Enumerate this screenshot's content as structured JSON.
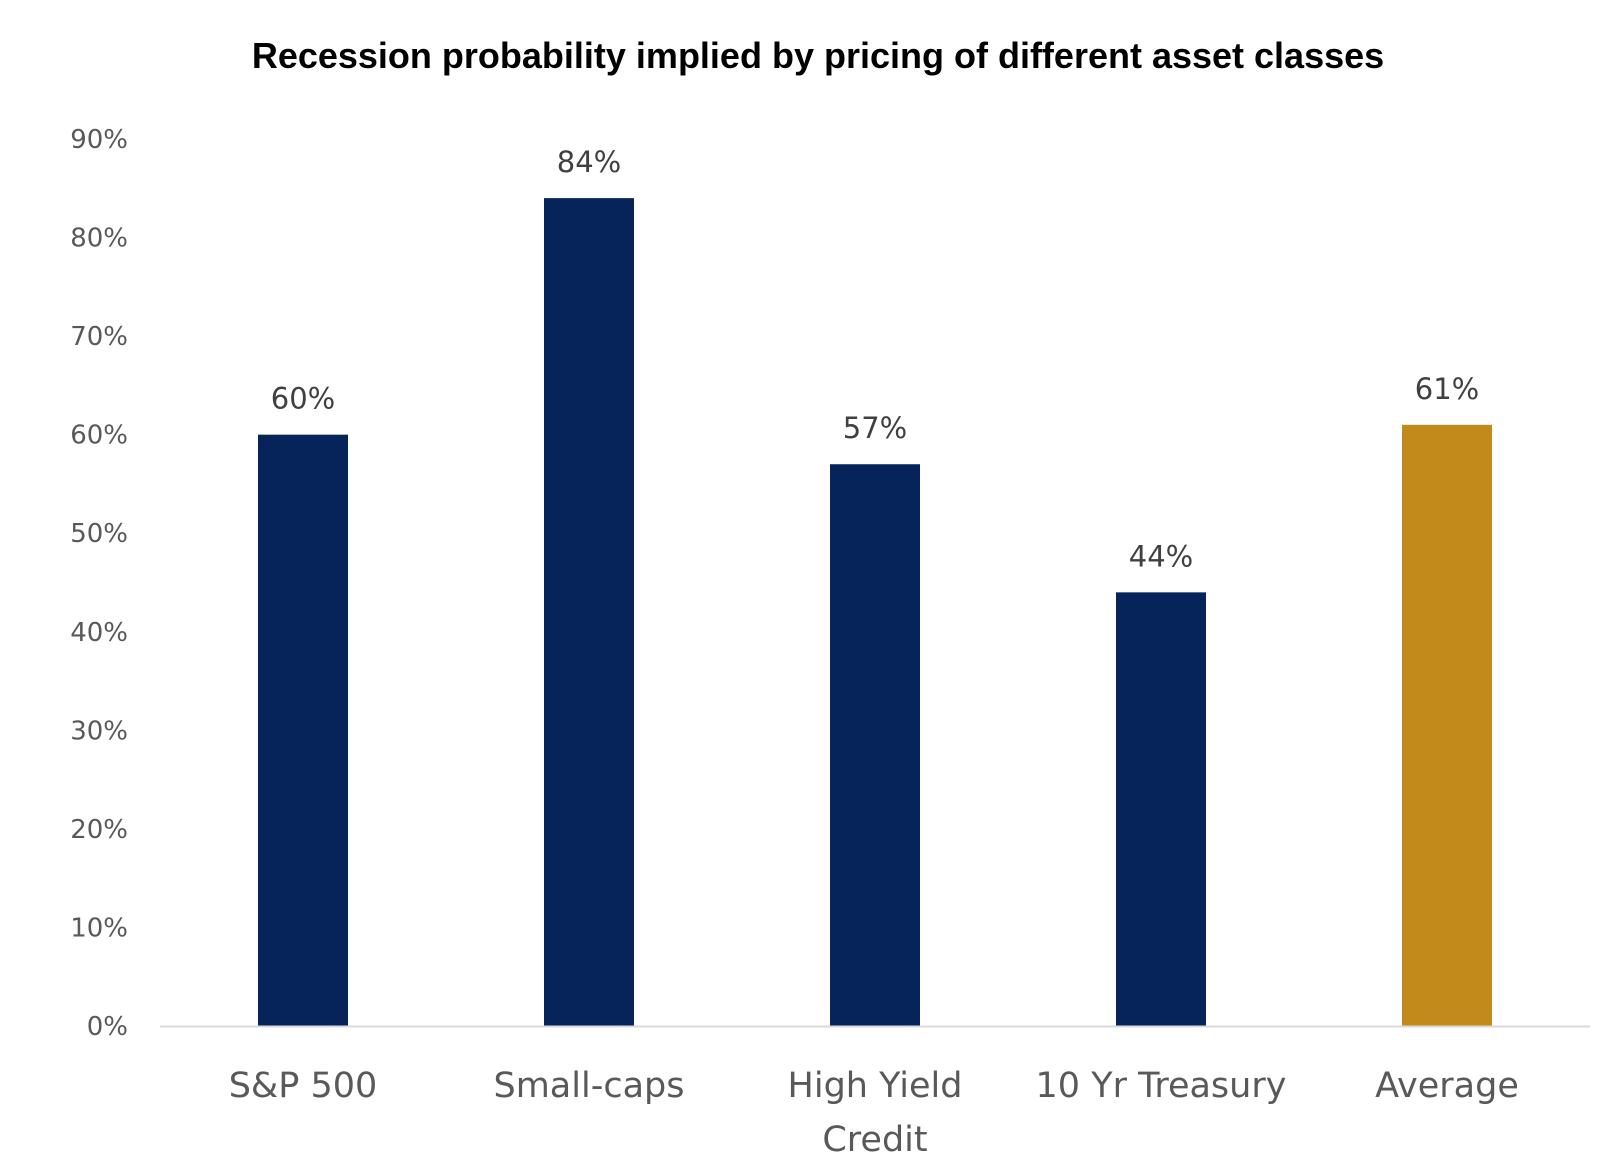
{
  "chart_data": {
    "type": "bar",
    "title": "Recession probability implied by pricing of different asset classes",
    "xlabel": "",
    "ylabel": "",
    "categories": [
      [
        "S&P  500"
      ],
      [
        "Small-caps"
      ],
      [
        "High Yield",
        "Credit"
      ],
      [
        "10 Yr Treasury"
      ],
      [
        "Average"
      ]
    ],
    "values": [
      60,
      84,
      57,
      44,
      61
    ],
    "data_labels": [
      "60%",
      "84%",
      "57%",
      "44%",
      "61%"
    ],
    "ylim": [
      0,
      90
    ],
    "yticks": [
      0,
      10,
      20,
      30,
      40,
      50,
      60,
      70,
      80,
      90
    ],
    "ytick_labels": [
      "0%",
      "10%",
      "20%",
      "30%",
      "40%",
      "50%",
      "60%",
      "70%",
      "80%",
      "90%"
    ],
    "grid": false,
    "legend": "none",
    "colors": [
      "#06235a",
      "#06235a",
      "#06235a",
      "#06235a",
      "#c28a1b"
    ],
    "axis_color": "#d9d9d9"
  }
}
